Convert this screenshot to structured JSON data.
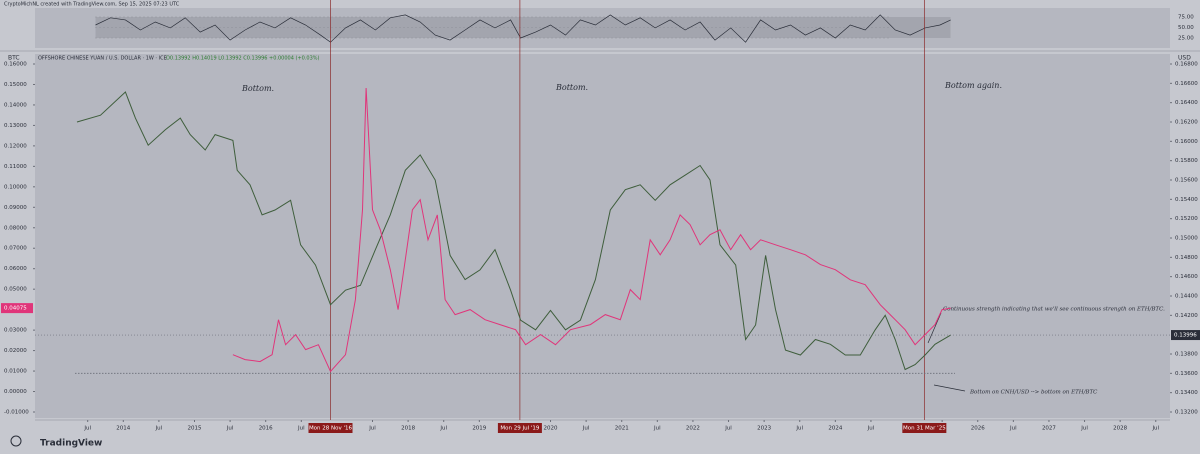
{
  "header": {
    "credit": "CryptoMichNL created with TradingView.com, Sep 15, 2025 07:23 UTC"
  },
  "footer": {
    "brand": "TradingView"
  },
  "chart_data": [
    {
      "type": "line",
      "name": "rsi-pane",
      "xlim": [
        2012.76,
        2028.7
      ],
      "ylim": [
        0,
        100
      ],
      "yticks": [
        {
          "value": 75,
          "label": "75.00"
        },
        {
          "value": 50,
          "label": "50.00"
        },
        {
          "value": 25,
          "label": "25.00"
        }
      ],
      "band": [
        25,
        75
      ],
      "series": [
        {
          "color": "#2a2e39",
          "x": [
            2013.61,
            2013.82,
            2014.03,
            2014.24,
            2014.45,
            2014.66,
            2014.87,
            2015.08,
            2015.29,
            2015.5,
            2015.71,
            2015.92,
            2016.13,
            2016.35,
            2016.56,
            2016.77,
            2016.91,
            2017.12,
            2017.33,
            2017.54,
            2017.75,
            2017.96,
            2018.17,
            2018.38,
            2018.59,
            2018.8,
            2019.01,
            2019.22,
            2019.44,
            2019.58,
            2019.79,
            2020.0,
            2020.21,
            2020.42,
            2020.63,
            2020.84,
            2021.05,
            2021.26,
            2021.47,
            2021.68,
            2021.89,
            2022.1,
            2022.31,
            2022.53,
            2022.74,
            2022.95,
            2023.16,
            2023.37,
            2023.58,
            2023.79,
            2024.0,
            2024.21,
            2024.42,
            2024.63,
            2024.84,
            2025.05,
            2025.26,
            2025.47,
            2025.62
          ],
          "values": [
            56,
            73,
            68,
            44,
            63,
            49,
            73,
            39,
            56,
            20,
            44,
            63,
            49,
            73,
            56,
            32,
            15,
            49,
            68,
            44,
            73,
            80,
            63,
            32,
            20,
            44,
            68,
            49,
            68,
            25,
            39,
            56,
            32,
            68,
            56,
            80,
            56,
            73,
            49,
            68,
            44,
            63,
            20,
            49,
            15,
            68,
            44,
            56,
            32,
            49,
            25,
            56,
            44,
            80,
            44,
            32,
            49,
            56,
            68
          ]
        }
      ]
    },
    {
      "type": "line",
      "name": "main-pane",
      "y_unit": "BTC",
      "y2_unit": "USD",
      "legend": "OFFSHORE CHINESE YUAN / U.S. DOLLAR · 1W · ICE",
      "ohlc": "O0.13992 H0.14019 L0.13992 C0.13996 +0.00004 (+0.03%)",
      "xlim": [
        2012.76,
        2028.7
      ],
      "xticks": [
        {
          "value": 2013.5,
          "label": "Jul"
        },
        2014,
        {
          "value": 2014.5,
          "label": "Jul"
        },
        2015,
        {
          "value": 2015.5,
          "label": "Jul"
        },
        2016,
        {
          "value": 2016.5,
          "label": "Jul"
        },
        {
          "value": 2017.5,
          "label": "Jul"
        },
        2018,
        {
          "value": 2018.5,
          "label": "Jul"
        },
        2019,
        2020,
        {
          "value": 2020.5,
          "label": "Jul"
        },
        2021,
        {
          "value": 2021.5,
          "label": "Jul"
        },
        2022,
        {
          "value": 2022.5,
          "label": "Jul"
        },
        2023,
        {
          "value": 2023.5,
          "label": "Jul"
        },
        2024,
        {
          "value": 2024.5,
          "label": "Jul"
        },
        {
          "value": 2025.5,
          "label": "Jul"
        },
        2026,
        {
          "value": 2026.5,
          "label": "Jul"
        },
        2027,
        {
          "value": 2027.5,
          "label": "Jul"
        },
        2028,
        {
          "value": 2028.5,
          "label": "Jul"
        }
      ],
      "ylim": [
        -0.01,
        0.16
      ],
      "yticks": [
        {
          "value": 0.16,
          "label": "0.16000"
        },
        {
          "value": 0.15,
          "label": "0.15000"
        },
        {
          "value": 0.14,
          "label": "0.14000"
        },
        {
          "value": 0.13,
          "label": "0.13000"
        },
        {
          "value": 0.12,
          "label": "0.12000"
        },
        {
          "value": 0.11,
          "label": "0.11000"
        },
        {
          "value": 0.1,
          "label": "0.10000"
        },
        {
          "value": 0.09,
          "label": "0.09000"
        },
        {
          "value": 0.08,
          "label": "0.08000"
        },
        {
          "value": 0.07,
          "label": "0.07000"
        },
        {
          "value": 0.06,
          "label": "0.06000"
        },
        {
          "value": 0.05,
          "label": "0.05000"
        },
        {
          "value": 0.03,
          "label": "0.03000"
        },
        {
          "value": 0.02,
          "label": "0.02000"
        },
        {
          "value": 0.01,
          "label": "0.01000"
        },
        {
          "value": 0,
          "label": "0.00000"
        },
        {
          "value": -0.01,
          "label": "-0.01000"
        }
      ],
      "y2lim": [
        0.132,
        0.168
      ],
      "y2ticks": [
        {
          "value": 0.168,
          "label": "0.16800"
        },
        {
          "value": 0.166,
          "label": "0.16600"
        },
        {
          "value": 0.164,
          "label": "0.16400"
        },
        {
          "value": 0.162,
          "label": "0.16200"
        },
        {
          "value": 0.16,
          "label": "0.16000"
        },
        {
          "value": 0.158,
          "label": "0.15800"
        },
        {
          "value": 0.156,
          "label": "0.15600"
        },
        {
          "value": 0.154,
          "label": "0.15400"
        },
        {
          "value": 0.152,
          "label": "0.15200"
        },
        {
          "value": 0.15,
          "label": "0.15000"
        },
        {
          "value": 0.148,
          "label": "0.14800"
        },
        {
          "value": 0.146,
          "label": "0.14600"
        },
        {
          "value": 0.144,
          "label": "0.14400"
        },
        {
          "value": 0.142,
          "label": "0.14200"
        },
        {
          "value": 0.138,
          "label": "0.13800"
        },
        {
          "value": 0.136,
          "label": "0.13600"
        },
        {
          "value": 0.134,
          "label": "0.13400"
        },
        {
          "value": 0.132,
          "label": "0.13200"
        }
      ],
      "series": [
        {
          "name": "OFFSHORE CHINESE YUAN / U.S. DOLLAR",
          "axis": "y2",
          "color": "#3f5e3c",
          "x": [
            2013.35,
            2013.68,
            2014.03,
            2014.17,
            2014.35,
            2014.59,
            2014.8,
            2014.94,
            2015.15,
            2015.29,
            2015.54,
            2015.6,
            2015.78,
            2015.95,
            2016.13,
            2016.35,
            2016.49,
            2016.7,
            2016.91,
            2017.12,
            2017.33,
            2017.54,
            2017.75,
            2017.96,
            2018.17,
            2018.38,
            2018.59,
            2018.8,
            2019.01,
            2019.22,
            2019.44,
            2019.58,
            2019.79,
            2020.0,
            2020.21,
            2020.42,
            2020.63,
            2020.84,
            2021.05,
            2021.26,
            2021.47,
            2021.68,
            2021.89,
            2022.1,
            2022.24,
            2022.38,
            2022.6,
            2022.74,
            2022.88,
            2023.02,
            2023.16,
            2023.3,
            2023.51,
            2023.72,
            2023.93,
            2024.14,
            2024.35,
            2024.56,
            2024.7,
            2024.84,
            2024.98,
            2025.12,
            2025.26,
            2025.4,
            2025.62
          ],
          "values": [
            0.162,
            0.1627,
            0.1651,
            0.1624,
            0.1596,
            0.1612,
            0.1624,
            0.1607,
            0.1591,
            0.1607,
            0.1601,
            0.157,
            0.1555,
            0.1524,
            0.1529,
            0.1539,
            0.1493,
            0.1472,
            0.1431,
            0.1446,
            0.1451,
            0.1488,
            0.1524,
            0.157,
            0.1586,
            0.156,
            0.1482,
            0.1457,
            0.1467,
            0.1488,
            0.1446,
            0.1415,
            0.1405,
            0.1425,
            0.1405,
            0.1415,
            0.1457,
            0.1529,
            0.155,
            0.1555,
            0.1539,
            0.1555,
            0.1565,
            0.1575,
            0.156,
            0.1493,
            0.1472,
            0.1395,
            0.141,
            0.1482,
            0.1426,
            0.1384,
            0.1379,
            0.1395,
            0.139,
            0.1379,
            0.1379,
            0.1405,
            0.142,
            0.1395,
            0.1364,
            0.1369,
            0.1379,
            0.139,
            0.13996
          ]
        },
        {
          "name": "ETH/BTC",
          "axis": "y",
          "color": "#e0357a",
          "x": [
            2015.54,
            2015.71,
            2015.92,
            2016.09,
            2016.18,
            2016.28,
            2016.42,
            2016.56,
            2016.74,
            2016.91,
            2017.12,
            2017.26,
            2017.36,
            2017.41,
            2017.5,
            2017.61,
            2017.75,
            2017.86,
            2017.96,
            2018.06,
            2018.17,
            2018.28,
            2018.41,
            2018.52,
            2018.66,
            2018.87,
            2019.08,
            2019.29,
            2019.51,
            2019.65,
            2019.86,
            2020.07,
            2020.28,
            2020.56,
            2020.77,
            2020.98,
            2021.12,
            2021.26,
            2021.4,
            2021.54,
            2021.68,
            2021.82,
            2021.96,
            2022.1,
            2022.24,
            2022.38,
            2022.53,
            2022.67,
            2022.81,
            2022.95,
            2023.16,
            2023.37,
            2023.58,
            2023.79,
            2024.0,
            2024.21,
            2024.42,
            2024.63,
            2024.84,
            2024.98,
            2025.12,
            2025.26,
            2025.4,
            2025.5,
            2025.62
          ],
          "values": [
            0.018,
            0.0156,
            0.0146,
            0.018,
            0.0351,
            0.0229,
            0.0278,
            0.0205,
            0.0229,
            0.0098,
            0.018,
            0.0449,
            0.0888,
            0.1483,
            0.0888,
            0.079,
            0.0595,
            0.04,
            0.0644,
            0.0888,
            0.0937,
            0.0741,
            0.0863,
            0.0449,
            0.0376,
            0.04,
            0.0351,
            0.0327,
            0.0302,
            0.0229,
            0.0278,
            0.0229,
            0.0302,
            0.0327,
            0.0376,
            0.0351,
            0.0498,
            0.0449,
            0.0741,
            0.0668,
            0.0741,
            0.0863,
            0.0815,
            0.0717,
            0.0766,
            0.079,
            0.0693,
            0.0766,
            0.0693,
            0.0741,
            0.0717,
            0.0693,
            0.0668,
            0.062,
            0.0595,
            0.0546,
            0.0522,
            0.0424,
            0.0351,
            0.0302,
            0.0229,
            0.0278,
            0.0327,
            0.04,
            0.04075
          ]
        }
      ],
      "hline": {
        "axis": "y2",
        "value": 0.136
      },
      "markers": [
        {
          "x": 2016.91,
          "label": "Mon 28 Nov '16"
        },
        {
          "x": 2019.57,
          "label": "Mon 29 Jul '19"
        },
        {
          "x": 2025.25,
          "label": "Mon 31 Mar '25"
        }
      ],
      "annotations": [
        "Bottom.",
        "Bottom.",
        "Bottom again.",
        "Continuous strength indicating that we'll see continuous strength on ETH/BTC.",
        "Bottom on CNH/USD --> bottom on ETH/BTC"
      ]
    }
  ]
}
